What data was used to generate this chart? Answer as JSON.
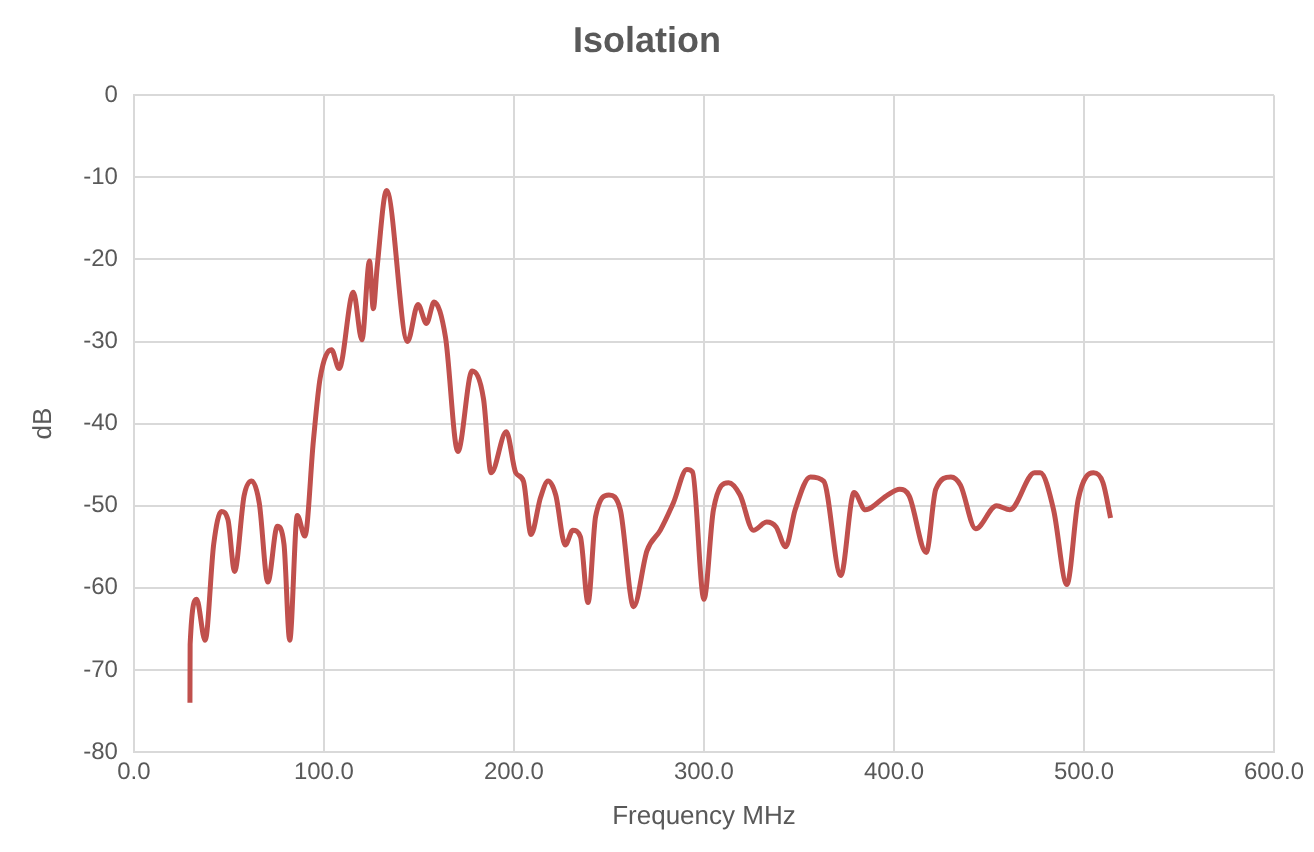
{
  "chart_data": {
    "type": "line",
    "title": "Isolation",
    "xlabel": "Frequency MHz",
    "ylabel": "dB",
    "x": [
      29.5,
      29.6,
      33,
      37.5,
      42,
      46,
      49.5,
      53,
      58,
      62,
      66,
      70.5,
      75.5,
      79,
      82,
      86,
      90,
      94.5,
      98,
      104,
      108,
      115.5,
      120,
      124,
      126,
      128,
      133,
      144,
      149.5,
      154,
      158,
      164,
      170.5,
      178,
      184,
      188,
      196,
      201,
      205,
      209,
      214,
      218,
      222,
      227,
      231,
      235,
      239,
      243,
      250,
      256,
      263,
      270,
      277,
      284,
      291,
      294,
      300,
      305,
      313,
      319,
      326,
      333,
      338,
      343,
      348,
      356,
      363,
      372,
      379,
      385,
      396,
      403,
      408,
      417,
      422,
      430,
      435,
      443,
      454,
      461,
      474,
      477,
      484,
      491,
      497,
      505,
      510,
      514
    ],
    "series": [
      {
        "color": "#c0504d",
        "values": [
          -74,
          -66.9,
          -61.4,
          -66.4,
          -54.7,
          -50.7,
          -51.7,
          -58,
          -48.8,
          -47,
          -49.7,
          -59.3,
          -52.5,
          -54.7,
          -66.4,
          -51.2,
          -53.7,
          -42,
          -34.5,
          -31,
          -33.3,
          -24,
          -29.8,
          -20.2,
          -26,
          -21,
          -11.6,
          -30,
          -25.5,
          -27.8,
          -25.2,
          -29.5,
          -43.4,
          -33.6,
          -37,
          -46,
          -41,
          -46,
          -47,
          -53.5,
          -49,
          -47,
          -48.7,
          -54.8,
          -53,
          -53.8,
          -61.8,
          -51.3,
          -48.7,
          -50.5,
          -62.3,
          -55.5,
          -53,
          -49.6,
          -45.6,
          -45.9,
          -61.4,
          -50.5,
          -47.2,
          -48.7,
          -53,
          -52,
          -52.6,
          -55,
          -50.5,
          -46.5,
          -47,
          -58.5,
          -48.4,
          -50.5,
          -48.8,
          -48,
          -48.8,
          -55.7,
          -48,
          -46.5,
          -47.5,
          -52.8,
          -50,
          -50.5,
          -46,
          -46,
          -50.5,
          -59.6,
          -49.2,
          -46,
          -47.2,
          -51.5
        ]
      }
    ],
    "xlim": [
      0,
      600
    ],
    "xticks": [
      {
        "value": 0,
        "label": "0.0"
      },
      {
        "value": 100,
        "label": "100.0"
      },
      {
        "value": 200,
        "label": "200.0"
      },
      {
        "value": 300,
        "label": "300.0"
      },
      {
        "value": 400,
        "label": "400.0"
      },
      {
        "value": 500,
        "label": "500.0"
      },
      {
        "value": 600,
        "label": "600.0"
      }
    ],
    "ylim": [
      -80,
      0
    ],
    "yticks": [
      -80,
      -70,
      -60,
      -50,
      -40,
      -30,
      -20,
      -10,
      0
    ],
    "grid": true,
    "legend": false,
    "marker": "none",
    "line_style": "solid"
  }
}
